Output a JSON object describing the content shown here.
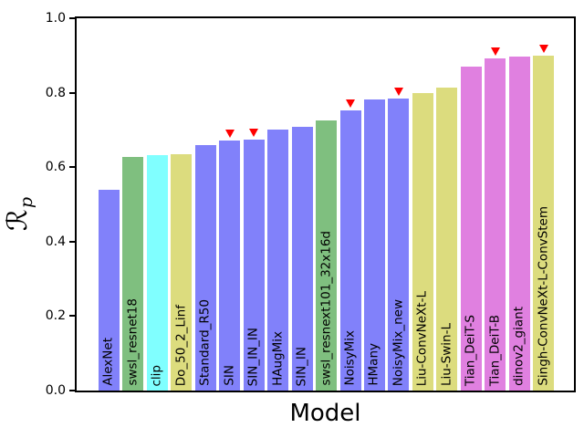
{
  "figure": {
    "xlabel": "Model",
    "ylabel": {
      "symbol": "ℛ",
      "subscript": "p"
    }
  },
  "chart_data": {
    "type": "bar",
    "title": "",
    "xlabel": "Model",
    "ylabel": "ℛ_p",
    "ylim": [
      0.0,
      1.0
    ],
    "yticks": [
      0.0,
      0.2,
      0.4,
      0.6,
      0.8,
      1.0
    ],
    "grid": false,
    "legend": null,
    "categories": [
      "AlexNet",
      "swsl_resnet18",
      "clip",
      "Do_50_2_Linf",
      "Standard_R50",
      "SIN",
      "SIN_IN_IN",
      "HAugMix",
      "SIN_IN",
      "swsl_resnext101_32x16d",
      "NoisyMix",
      "HMany",
      "NoisyMix_new",
      "Liu-ConvNeXt-L",
      "Liu-Swin-L",
      "Tian_DeiT-S",
      "Tian_DeiT-B",
      "dinov2_giant",
      "Singh-ConvNeXt-L-ConvStem"
    ],
    "values": [
      0.54,
      0.628,
      0.632,
      0.636,
      0.66,
      0.671,
      0.673,
      0.702,
      0.708,
      0.726,
      0.753,
      0.782,
      0.785,
      0.8,
      0.813,
      0.87,
      0.893,
      0.898,
      0.899
    ],
    "bar_colors": [
      "#8181fa",
      "#7fbf7f",
      "#80ffff",
      "#dcdc7e",
      "#8181fa",
      "#8181fa",
      "#8181fa",
      "#8181fa",
      "#8181fa",
      "#7fbf7f",
      "#8181fa",
      "#8181fa",
      "#8181fa",
      "#dcdc7e",
      "#dcdc7e",
      "#e080e0",
      "#e080e0",
      "#e080e0",
      "#dcdc7e"
    ],
    "marked": [
      false,
      false,
      false,
      false,
      false,
      true,
      true,
      false,
      false,
      false,
      true,
      false,
      true,
      false,
      false,
      false,
      true,
      false,
      true
    ],
    "marker": {
      "shape": "triangle-down",
      "color": "#ff0000"
    },
    "palette": {
      "blue": "#8181fa",
      "green": "#7fbf7f",
      "cyan": "#80ffff",
      "khaki": "#dcdc7e",
      "violet": "#e080e0"
    }
  }
}
